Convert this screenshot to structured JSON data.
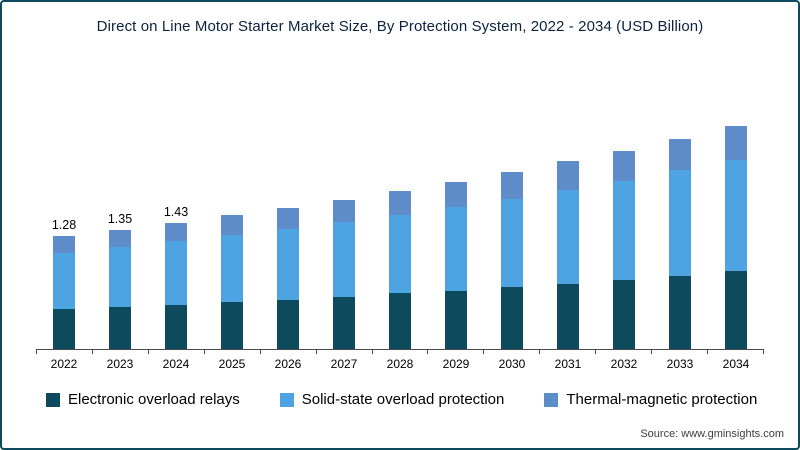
{
  "title": "Direct on Line Motor Starter Market Size, By Protection System, 2022 - 2034 (USD Billion)",
  "source": "Source: www.gminsights.com",
  "colors": {
    "border": "#0d4a5e",
    "axis": "#4a4a4a"
  },
  "chart_data": {
    "type": "bar",
    "stacked": true,
    "title": "Direct on Line Motor Starter Market Size, By Protection System, 2022 - 2034 (USD Billion)",
    "xlabel": "",
    "ylabel": "USD Billion",
    "ylim": [
      0,
      2.6
    ],
    "grid": false,
    "legend_position": "bottom",
    "categories": [
      "2022",
      "2023",
      "2024",
      "2025",
      "2026",
      "2027",
      "2028",
      "2029",
      "2030",
      "2031",
      "2032",
      "2033",
      "2034"
    ],
    "series": [
      {
        "name": "Electronic overload relays",
        "color": "#0d4a5e",
        "values": [
          0.45,
          0.47,
          0.5,
          0.53,
          0.56,
          0.59,
          0.63,
          0.66,
          0.7,
          0.74,
          0.78,
          0.83,
          0.88
        ]
      },
      {
        "name": "Solid-state overload protection",
        "color": "#4ea3e2",
        "values": [
          0.64,
          0.68,
          0.72,
          0.76,
          0.8,
          0.85,
          0.89,
          0.95,
          1.0,
          1.06,
          1.12,
          1.19,
          1.26
        ]
      },
      {
        "name": "Thermal-magnetic protection",
        "color": "#5d8cc9",
        "values": [
          0.19,
          0.2,
          0.21,
          0.22,
          0.24,
          0.25,
          0.27,
          0.28,
          0.3,
          0.32,
          0.34,
          0.36,
          0.38
        ]
      }
    ],
    "totals": [
      1.28,
      1.35,
      1.43,
      1.51,
      1.6,
      1.69,
      1.79,
      1.89,
      2.0,
      2.12,
      2.24,
      2.38,
      2.52
    ],
    "data_labels": [
      "1.28",
      "1.35",
      "1.43"
    ]
  }
}
